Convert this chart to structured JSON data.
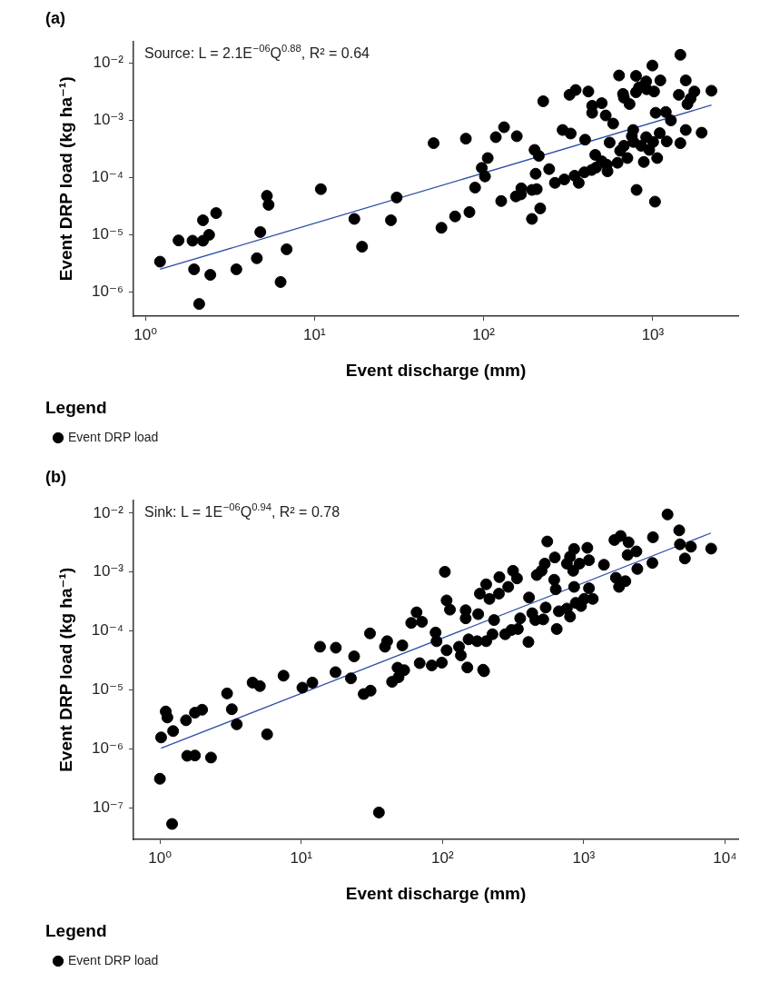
{
  "chart_data": [
    {
      "type": "scatter",
      "title": "(a)",
      "xlabel": "Event discharge (mm)",
      "ylabel": "Event DRP load (kg ha⁻¹)",
      "legend_title": "Legend",
      "legend": "bottom",
      "marker": "circle",
      "log": "xy",
      "annotations": [
        "Source: L = 2.1E$^{−06}$Q$^{0.88}$, R² = 0.64"
      ],
      "xlim": [
        0.85,
        3200
      ],
      "ylim": [
        3.8e-07,
        0.024
      ],
      "xticks": [
        {
          "value": 1,
          "label": "10⁰"
        },
        {
          "value": 10,
          "label": "10¹"
        },
        {
          "value": 100,
          "label": "10²"
        },
        {
          "value": 1000,
          "label": "10³"
        }
      ],
      "yticks": [
        {
          "value": 1e-06,
          "label": "10⁻⁶"
        },
        {
          "value": 1e-05,
          "label": "10⁻⁵"
        },
        {
          "value": 0.0001,
          "label": "10⁻⁴"
        },
        {
          "value": 0.001,
          "label": "10⁻³"
        },
        {
          "value": 0.01,
          "label": "10⁻²"
        }
      ],
      "series": [
        {
          "name": "Event DRP load",
          "color": "#000000",
          "x": [
            1.22,
            1.57,
            1.9,
            2.19,
            2.38,
            2.19,
            2.62,
            1.94,
            2.42,
            2.08,
            3.45,
            4.56,
            4.78,
            5.23,
            5.35,
            6.84,
            6.3,
            10.9,
            17.2,
            19.1,
            28.3,
            30.6,
            50.6,
            56.3,
            67.8,
            82.4,
            78.5,
            89,
            97.5,
            101.8,
            105.7,
            118,
            132,
            157,
            127,
            155,
            167,
            166,
            193,
            216,
            193,
            206,
            203,
            200,
            212,
            225,
            244,
            264,
            300,
            293,
            327,
            322,
            350,
            345,
            365,
            394,
            435,
            462,
            457,
            499,
            540,
            535,
            398,
            416,
            438,
            438,
            499,
            527,
            583,
            556,
            619,
            641,
            675,
            708,
            632,
            667,
            675,
            729,
            766,
            752,
            769,
            802,
            796,
            796,
            830,
            914,
            921,
            995,
            1018,
            855,
            885,
            914,
            953,
            1005,
            1031,
            1040,
            1062,
            1099,
            1109,
            1194,
            1210,
            1280,
            1456,
            1426,
            1567,
            1603,
            1672,
            1762,
            1567,
            1456,
            1945,
            2223
          ],
          "values": [
            3.4e-06,
            8e-06,
            7.9e-06,
            7.9e-06,
            1e-05,
            1.8e-05,
            2.4e-05,
            2.5e-06,
            2e-06,
            6.2e-07,
            2.5e-06,
            3.9e-06,
            1.12e-05,
            4.8e-05,
            3.35e-05,
            5.6e-06,
            1.5e-06,
            6.3e-05,
            1.9e-05,
            6.2e-06,
            1.8e-05,
            4.5e-05,
            0.0004,
            1.33e-05,
            2.1e-05,
            2.5e-05,
            0.00048,
            6.7e-05,
            0.000148,
            0.000105,
            0.00022,
            0.00051,
            0.00076,
            0.00053,
            3.9e-05,
            4.7e-05,
            6.5e-05,
            5.1e-05,
            1.9e-05,
            2.9e-05,
            6.1e-05,
            6.3e-05,
            0.000117,
            0.000305,
            0.00024,
            0.00216,
            0.000141,
            8.1e-05,
            9.3e-05,
            0.00068,
            0.00059,
            0.0028,
            0.0034,
            0.000108,
            8.1e-05,
            0.000124,
            0.000136,
            0.00015,
            0.00025,
            0.000193,
            0.000129,
            0.000168,
            0.00046,
            0.0032,
            0.0018,
            0.00136,
            0.002,
            0.00122,
            0.00088,
            0.00041,
            0.000182,
            0.000295,
            0.00036,
            0.00022,
            0.0061,
            0.0029,
            0.0025,
            0.00193,
            0.00068,
            0.00053,
            0.00042,
            6.1e-05,
            0.006,
            0.0031,
            0.0038,
            0.0048,
            0.0035,
            0.0091,
            0.0032,
            0.00036,
            0.000188,
            0.00051,
            0.000305,
            0.00042,
            3.8e-05,
            0.00136,
            0.00022,
            0.0006,
            0.005,
            0.0014,
            0.00043,
            0.001,
            0.014,
            0.0028,
            0.005,
            0.00193,
            0.0024,
            0.0032,
            0.00068,
            0.0004,
            0.00061,
            0.0033
          ]
        },
        {
          "type": "line",
          "color": "#2e4fa8",
          "marker": "none",
          "x": [
            1.22,
            2223
          ],
          "values": [
            2.5e-06,
            0.00185
          ]
        }
      ]
    },
    {
      "type": "scatter",
      "title": "(b)",
      "xlabel": "Event discharge (mm)",
      "ylabel": "Event DRP load (kg ha⁻¹)",
      "legend_title": "Legend",
      "legend": "bottom",
      "marker": "circle",
      "log": "xy",
      "annotations": [
        "Sink: L = 1E$^{−06}$Q$^{0.94}$, R² = 0.78"
      ],
      "xlim": [
        0.65,
        12400
      ],
      "ylim": [
        2.9e-08,
        0.0166
      ],
      "xticks": [
        {
          "value": 1,
          "label": "10⁰"
        },
        {
          "value": 10,
          "label": "10¹"
        },
        {
          "value": 100,
          "label": "10²"
        },
        {
          "value": 1000,
          "label": "10³"
        },
        {
          "value": 10000,
          "label": "10⁴"
        }
      ],
      "yticks": [
        {
          "value": 1e-07,
          "label": "10⁻⁷"
        },
        {
          "value": 1e-06,
          "label": "10⁻⁶"
        },
        {
          "value": 1e-05,
          "label": "10⁻⁵"
        },
        {
          "value": 0.0001,
          "label": "10⁻⁴"
        },
        {
          "value": 0.001,
          "label": "10⁻³"
        },
        {
          "value": 0.01,
          "label": "10⁻²"
        }
      ],
      "series": [
        {
          "name": "Event DRP load",
          "color": "#000000",
          "x": [
            1.02,
            1.1,
            1.13,
            1.24,
            1.53,
            1.77,
            1.99,
            1.56,
            1.77,
            2.3,
            2.99,
            3.23,
            3.5,
            4.53,
            5.1,
            5.74,
            7.5,
            10.2,
            12.0,
            13.6,
            17.6,
            17.5,
            22.5,
            23.7,
            27.7,
            31.0,
            30.7,
            39.2,
            40.6,
            52,
            44,
            48.9,
            53.6,
            48.1,
            60.1,
            65.6,
            71.6,
            69,
            84,
            89.4,
            90.8,
            1.0,
            1.22,
            35.5,
            104,
            107,
            113,
            107,
            99,
            150,
            131,
            135,
            153,
            146,
            146,
            179,
            184,
            204,
            215,
            194,
            204,
            197,
            176,
            226,
            232,
            251,
            253,
            292,
            316,
            337,
            278,
            308,
            342,
            355,
            406,
            410,
            432,
            454,
            517,
            538,
            465,
            503,
            530,
            552,
            618,
            634,
            624,
            644,
            667,
            760,
            800,
            760,
            800,
            855,
            842,
            855,
            878,
            957,
            933,
            1061,
            1089,
            1089,
            1159,
            1008,
            1390,
            1649,
            1825,
            2077,
            2044,
            2360,
            2397,
            1690,
            1778,
            1971,
            3090,
            3062,
            3920,
            4740,
            4797,
            5200,
            5740,
            7980
          ],
          "values": [
            1.56e-06,
            4.3e-06,
            3.4e-06,
            2e-06,
            3.05e-06,
            4.1e-06,
            4.6e-06,
            7.6e-07,
            7.7e-07,
            7.1e-07,
            8.7e-06,
            4.7e-06,
            2.6e-06,
            1.33e-05,
            1.16e-05,
            1.76e-06,
            1.74e-05,
            1.09e-05,
            1.33e-05,
            5.4e-05,
            5.2e-05,
            2e-05,
            1.57e-05,
            3.7e-05,
            8.5e-06,
            9.7e-06,
            9.1e-05,
            5.4e-05,
            6.7e-05,
            5.7e-05,
            1.37e-05,
            1.64e-05,
            2.16e-05,
            2.38e-05,
            0.000137,
            0.000207,
            0.000143,
            2.84e-05,
            2.6e-05,
            9.4e-05,
            6.7e-05,
            3.1e-07,
            5.3e-08,
            8.3e-08,
            0.00101,
            0.00033,
            0.00023,
            4.7e-05,
            2.9e-05,
            2.4e-05,
            5.4e-05,
            3.85e-05,
            7.2e-05,
            0.000225,
            0.000164,
            0.000193,
            0.00043,
            0.00062,
            0.00035,
            2.2e-05,
            6.7e-05,
            2.07e-05,
            6.7e-05,
            8.8e-05,
            0.000153,
            0.00043,
            0.00082,
            0.00056,
            0.00105,
            0.00078,
            8.8e-05,
            0.000104,
            0.000108,
            0.000164,
            6.5e-05,
            0.00037,
            0.0002,
            0.000153,
            0.000157,
            0.00025,
            0.00089,
            0.00105,
            0.00139,
            0.0033,
            0.00074,
            0.00051,
            0.00177,
            0.000108,
            0.000216,
            0.00024,
            0.000175,
            0.00139,
            0.00182,
            0.00247,
            0.00105,
            0.00056,
            0.0003,
            0.000265,
            0.00139,
            0.00258,
            0.00159,
            0.00053,
            0.00035,
            0.00035,
            0.00133,
            0.0035,
            0.0041,
            0.0032,
            0.00195,
            0.00224,
            0.00113,
            0.0008,
            0.00056,
            0.0007,
            0.0039,
            0.00143,
            0.0095,
            0.0051,
            0.00296,
            0.0017,
            0.00269,
            0.0025
          ]
        },
        {
          "type": "line",
          "color": "#2e4fa8",
          "marker": "none",
          "x": [
            1.02,
            7950
          ],
          "values": [
            1.02e-06,
            0.0046
          ]
        }
      ]
    }
  ]
}
